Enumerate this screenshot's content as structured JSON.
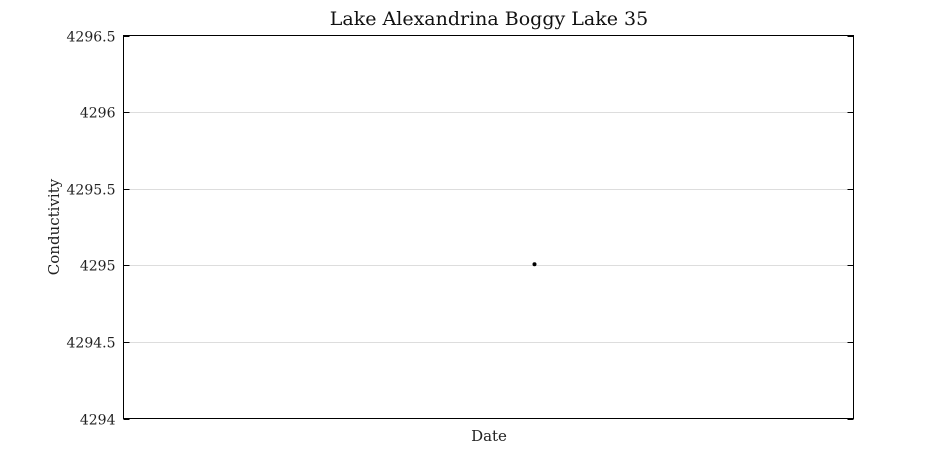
{
  "chart_data": {
    "type": "scatter",
    "title": "Lake Alexandrina Boggy Lake 35",
    "xlabel": "Date",
    "ylabel": "Conductivity",
    "ylim": [
      4294,
      4296.5
    ],
    "yticks": [
      4294,
      4294.5,
      4295,
      4295.5,
      4296,
      4296.5
    ],
    "ytick_labels": [
      "4294",
      "4294.5",
      "4295",
      "4295.5",
      "4296",
      "4296.5"
    ],
    "x_tick_labels": [],
    "grid": true,
    "series": [
      {
        "points": [
          {
            "x": "",
            "y": 4295
          }
        ],
        "color": "#000000"
      }
    ]
  }
}
